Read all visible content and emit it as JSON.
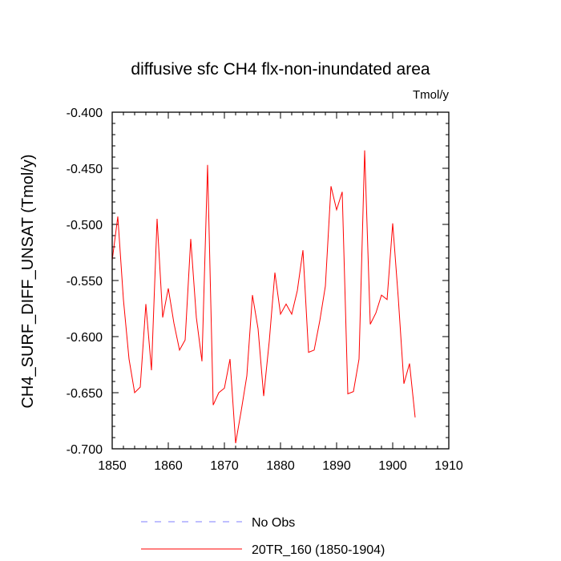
{
  "chart_data": {
    "type": "line",
    "title": "diffusive sfc CH4 flx-non-inundated area",
    "units_label": "Tmol/y",
    "xlabel": "",
    "ylabel": "CH4_SURF_DIFF_UNSAT  (Tmol/y)",
    "xlim": [
      1850,
      1910
    ],
    "ylim": [
      -0.7,
      -0.4
    ],
    "x_ticks": [
      1850,
      1860,
      1870,
      1880,
      1890,
      1900,
      1910
    ],
    "x_tick_labels": [
      "1850",
      "1860",
      "1870",
      "1880",
      "1890",
      "1900",
      "1910"
    ],
    "y_ticks": [
      -0.4,
      -0.45,
      -0.5,
      -0.55,
      -0.6,
      -0.65,
      -0.7
    ],
    "y_tick_labels": [
      "-0.400",
      "-0.450",
      "-0.500",
      "-0.550",
      "-0.600",
      "-0.650",
      "-0.700"
    ],
    "grid": false,
    "legend_position": "bottom",
    "series": [
      {
        "name": "No Obs",
        "color": "#7f7fff",
        "style": "dashed",
        "x": [],
        "values": []
      },
      {
        "name": "20TR_160 (1850-1904)",
        "color": "#ff0000",
        "style": "solid",
        "x": [
          1850,
          1851,
          1852,
          1853,
          1854,
          1855,
          1856,
          1857,
          1858,
          1859,
          1860,
          1861,
          1862,
          1863,
          1864,
          1865,
          1866,
          1867,
          1868,
          1869,
          1870,
          1871,
          1872,
          1873,
          1874,
          1875,
          1876,
          1877,
          1878,
          1879,
          1880,
          1881,
          1882,
          1883,
          1884,
          1885,
          1886,
          1887,
          1888,
          1889,
          1890,
          1891,
          1892,
          1893,
          1894,
          1895,
          1896,
          1897,
          1898,
          1899,
          1900,
          1901,
          1902,
          1903,
          1904
        ],
        "values": [
          -0.532,
          -0.493,
          -0.567,
          -0.62,
          -0.65,
          -0.645,
          -0.571,
          -0.63,
          -0.495,
          -0.583,
          -0.557,
          -0.588,
          -0.612,
          -0.603,
          -0.513,
          -0.583,
          -0.622,
          -0.447,
          -0.661,
          -0.65,
          -0.646,
          -0.62,
          -0.695,
          -0.666,
          -0.635,
          -0.563,
          -0.593,
          -0.653,
          -0.604,
          -0.543,
          -0.58,
          -0.571,
          -0.58,
          -0.559,
          -0.523,
          -0.614,
          -0.612,
          -0.586,
          -0.555,
          -0.466,
          -0.487,
          -0.471,
          -0.651,
          -0.649,
          -0.62,
          -0.434,
          -0.589,
          -0.579,
          -0.563,
          -0.567,
          -0.499,
          -0.566,
          -0.642,
          -0.624,
          -0.672
        ]
      }
    ]
  }
}
